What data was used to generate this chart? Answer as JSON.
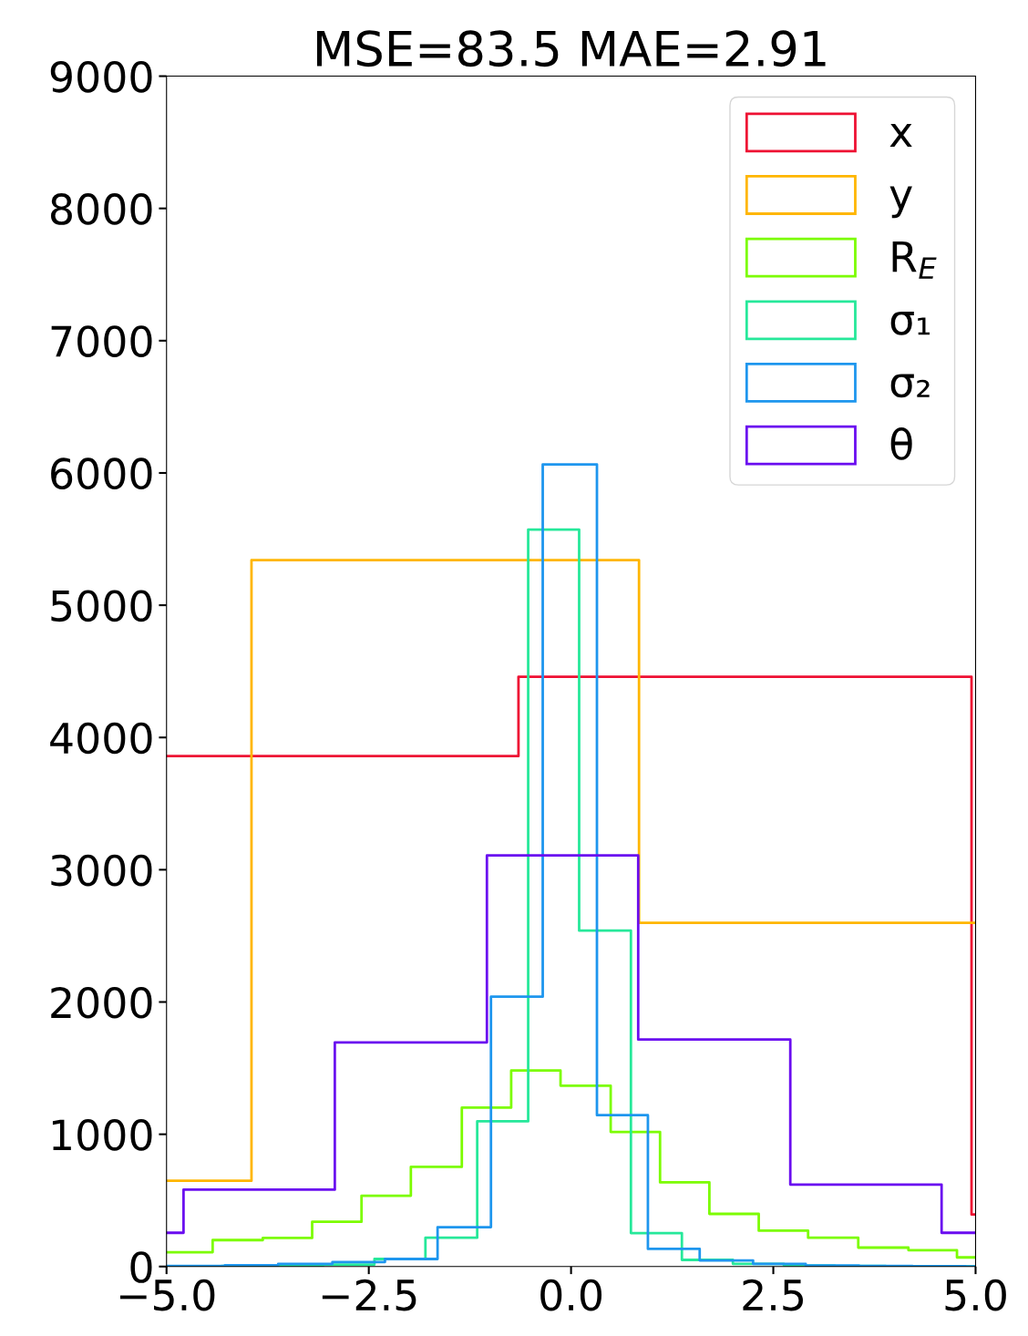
{
  "chart_data": {
    "type": "step",
    "title": "MSE=83.5 MAE=2.91",
    "series": [
      {
        "name": "x",
        "color": "#ee1133",
        "x": [
          -5,
          -0.65,
          4.95,
          5
        ],
        "values": [
          3859,
          4459,
          393,
          393
        ]
      },
      {
        "name": "y",
        "color": "#ffb600",
        "x": [
          -5,
          -3.95,
          0.84,
          5
        ],
        "values": [
          648,
          5341,
          2598,
          2598
        ]
      },
      {
        "name": "R$_{E}$",
        "color": "#7cfc00",
        "x": [
          -5,
          -4.43,
          -3.81,
          -3.2,
          -2.59,
          -1.98,
          -1.35,
          -0.74,
          -0.13,
          0.49,
          1.1,
          1.71,
          2.32,
          2.93,
          3.55,
          4.17,
          4.77,
          5
        ],
        "values": [
          108,
          200,
          216,
          338,
          535,
          753,
          1201,
          1482,
          1367,
          1018,
          636,
          398,
          271,
          218,
          143,
          124,
          69,
          69
        ]
      },
      {
        "name": "σ₁",
        "color": "#26e89a",
        "x": [
          -5,
          -4.32,
          -3.69,
          -3.06,
          -2.43,
          -1.8,
          -1.16,
          -0.53,
          0.1,
          0.74,
          1.37,
          2.0,
          2.63,
          3.26,
          3.89,
          4.52,
          5
        ],
        "values": [
          3,
          5,
          8,
          15,
          57,
          218,
          1098,
          5571,
          2540,
          253,
          50,
          20,
          8,
          4,
          2,
          1,
          1
        ]
      },
      {
        "name": "σ₂",
        "color": "#1e96ee",
        "x": [
          -5,
          -4.28,
          -3.62,
          -2.95,
          -2.3,
          -1.65,
          -0.99,
          -0.35,
          0.32,
          0.95,
          1.59,
          2.25,
          2.9,
          3.56,
          4.22,
          4.88,
          5
        ],
        "values": [
          5,
          10,
          20,
          34,
          57,
          298,
          2040,
          6065,
          1144,
          133,
          46,
          20,
          8,
          4,
          2,
          1,
          1
        ]
      },
      {
        "name": "θ",
        "color": "#6a0cf0",
        "x": [
          -5,
          -4.79,
          -2.92,
          -1.04,
          0.83,
          2.71,
          4.58,
          5
        ],
        "values": [
          255,
          581,
          1695,
          3108,
          1716,
          620,
          255,
          255
        ]
      }
    ],
    "xlim": [
      -5,
      5
    ],
    "xticks": [
      {
        "value": -5,
        "label": "−5.0"
      },
      {
        "value": -2.5,
        "label": "−2.5"
      },
      {
        "value": 0,
        "label": "0.0"
      },
      {
        "value": 2.5,
        "label": "2.5"
      },
      {
        "value": 5,
        "label": "5.0"
      }
    ],
    "ylim": [
      0,
      9000
    ],
    "yticks": [
      0,
      1000,
      2000,
      3000,
      4000,
      5000,
      6000,
      7000,
      8000,
      9000
    ],
    "grid": false,
    "legend": "top right"
  }
}
